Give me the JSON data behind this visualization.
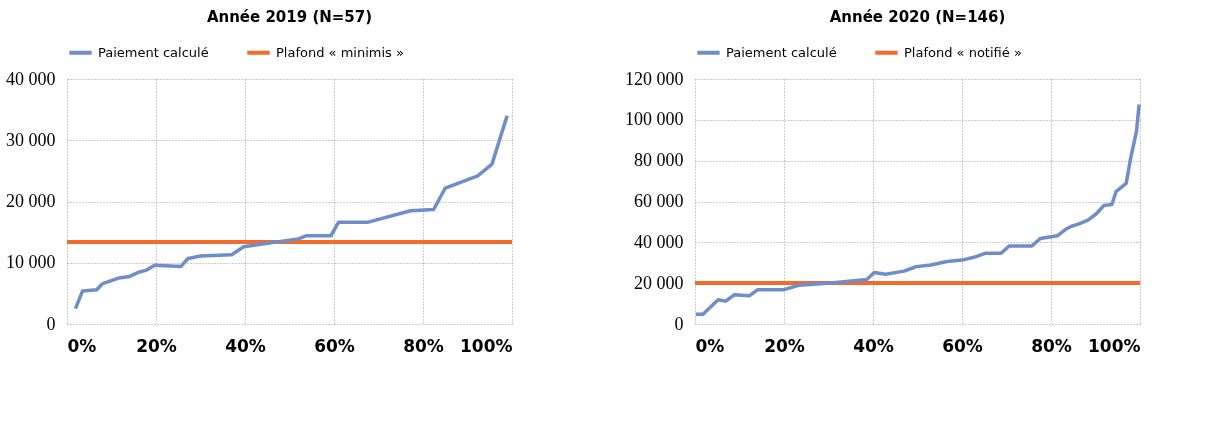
{
  "chart_data": [
    {
      "type": "line",
      "title": "Année 2019 (N=57)",
      "legend": "top",
      "grid": true,
      "line_style": "solid",
      "marker": "none",
      "xlim": [
        0,
        100
      ],
      "xticks": [
        {
          "value": 0,
          "label": "0%"
        },
        {
          "value": 20,
          "label": "20%"
        },
        {
          "value": 40,
          "label": "40%"
        },
        {
          "value": 60,
          "label": "60%"
        },
        {
          "value": 80,
          "label": "80%"
        },
        {
          "value": 100,
          "label": "100%"
        }
      ],
      "ylim": [
        0,
        40000
      ],
      "yticks": [
        0,
        {
          "value": 10000,
          "label": "10 000"
        },
        {
          "value": 20000,
          "label": "20 000"
        },
        {
          "value": 30000,
          "label": "30 000"
        },
        {
          "value": 40000,
          "label": "40 000"
        }
      ],
      "series": [
        {
          "name": "Paiement calculé",
          "color": "#6f8ccb",
          "x": [
            1.9,
            3.5,
            6.7,
            8,
            11.6,
            13.8,
            16.3,
            17.9,
            19.7,
            25.6,
            27.2,
            30,
            37,
            39.7,
            52,
            53.7,
            59.3,
            61,
            67.5,
            77.2,
            82.4,
            85,
            92.3,
            95.5,
            98.9
          ],
          "values": [
            2500,
            5400,
            5600,
            6600,
            7500,
            7700,
            8500,
            8800,
            9600,
            9400,
            10700,
            11100,
            11300,
            12600,
            13900,
            14400,
            14400,
            16600,
            16600,
            18500,
            18700,
            22200,
            24200,
            26100,
            34000
          ]
        }
      ],
      "ref_lines": [
        {
          "axis": "y",
          "value": 13400,
          "label": "Plafond « minimis »",
          "color": "#f26b2a",
          "line_style": "solid"
        }
      ]
    },
    {
      "type": "line",
      "title": "Année 2020 (N=146)",
      "legend": "top",
      "grid": true,
      "line_style": "solid",
      "marker": "none",
      "xlim": [
        0,
        100
      ],
      "xticks": [
        {
          "value": 0,
          "label": "0%"
        },
        {
          "value": 20,
          "label": "20%"
        },
        {
          "value": 40,
          "label": "40%"
        },
        {
          "value": 60,
          "label": "60%"
        },
        {
          "value": 80,
          "label": "80%"
        },
        {
          "value": 100,
          "label": "100%"
        }
      ],
      "ylim": [
        0,
        120000
      ],
      "yticks": [
        0,
        {
          "value": 20000,
          "label": "20 000"
        },
        {
          "value": 40000,
          "label": "40 000"
        },
        {
          "value": 60000,
          "label": "60 000"
        },
        {
          "value": 80000,
          "label": "80 000"
        },
        {
          "value": 100000,
          "label": "100 000"
        },
        {
          "value": 120000,
          "label": "120 000"
        }
      ],
      "series": [
        {
          "name": "Paiement calculé",
          "color": "#6f8ccb",
          "x": [
            0.2,
            1.8,
            5.2,
            6.9,
            8.8,
            12.2,
            14.1,
            20,
            23.3,
            30.6,
            38.6,
            40.3,
            42.8,
            47,
            49.7,
            53,
            56.6,
            60,
            62.9,
            65.3,
            68.8,
            70.6,
            75.7,
            77.6,
            81.4,
            83.3,
            84.6,
            86,
            88.3,
            90.2,
            91.9,
            93.7,
            94.6,
            96.9,
            97.8,
            99.2,
            99.8
          ],
          "values": [
            4800,
            4800,
            11900,
            11200,
            14300,
            13800,
            16800,
            16800,
            19000,
            20100,
            21800,
            25200,
            24400,
            25900,
            28100,
            28900,
            30600,
            31300,
            32800,
            34700,
            34700,
            38200,
            38200,
            41900,
            43200,
            46400,
            47900,
            48800,
            50900,
            54000,
            58100,
            58500,
            64800,
            68900,
            80100,
            94300,
            107500
          ]
        }
      ],
      "ref_lines": [
        {
          "axis": "y",
          "value": 20100,
          "label": "Plafond « notifié »",
          "color": "#f26b2a",
          "line_style": "solid"
        }
      ]
    }
  ]
}
